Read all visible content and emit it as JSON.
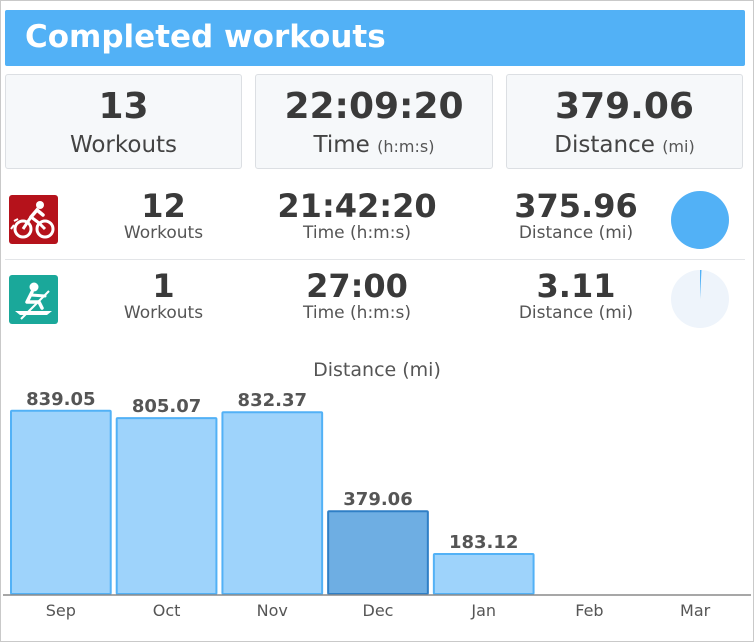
{
  "header": {
    "title": "Completed workouts"
  },
  "summary": {
    "workouts": {
      "value": "13",
      "label": "Workouts"
    },
    "time": {
      "value": "22:09:20",
      "label": "Time",
      "unit": "(h:m:s)"
    },
    "distance": {
      "value": "379.06",
      "label": "Distance",
      "unit": "(mi)"
    }
  },
  "sports": [
    {
      "icon": "cycling-icon",
      "icon_color": "#b5121b",
      "workouts": "12",
      "workouts_label": "Workouts",
      "time": "21:42:20",
      "time_label": "Time (h:m:s)",
      "distance": "375.96",
      "distance_label": "Distance (mi)",
      "share": 0.9918
    },
    {
      "icon": "rowing-icon",
      "icon_color": "#1aa89a",
      "workouts": "1",
      "workouts_label": "Workouts",
      "time": "27:00",
      "time_label": "Time (h:m:s)",
      "distance": "3.11",
      "distance_label": "Distance (mi)",
      "share": 0.0082
    }
  ],
  "colors": {
    "header": "#52b1f6",
    "pie_fill": "#52b1f6",
    "pie_empty": "#eef4fb",
    "bar": "#9ed3fb",
    "bar_border": "#52b1f6",
    "bar_highlight": "#6eaee3",
    "bar_highlight_border": "#2f7fc6"
  },
  "chart_data": {
    "type": "bar",
    "title": "Distance (mi)",
    "categories": [
      "Sep",
      "Oct",
      "Nov",
      "Dec",
      "Jan",
      "Feb",
      "Mar"
    ],
    "values": [
      839.05,
      805.07,
      832.37,
      379.06,
      183.12,
      null,
      null
    ],
    "value_labels": [
      "839.05",
      "805.07",
      "832.37",
      "379.06",
      "183.12",
      "",
      ""
    ],
    "highlight": "Dec",
    "ylim": [
      0,
      870
    ],
    "grid": false
  }
}
